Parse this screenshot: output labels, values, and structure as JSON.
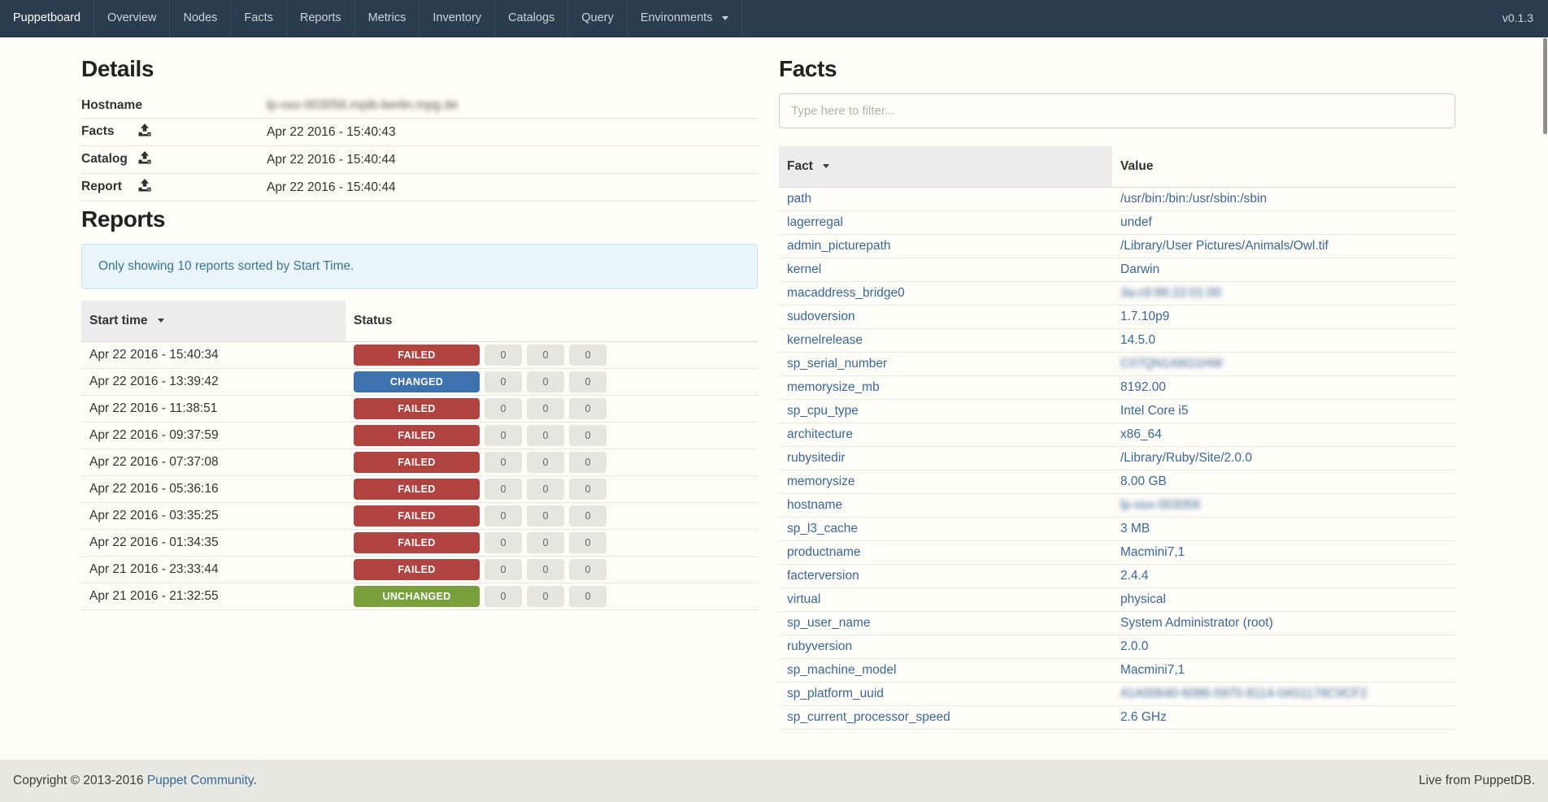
{
  "navbar": {
    "brand": "Puppetboard",
    "items": [
      "Overview",
      "Nodes",
      "Facts",
      "Reports",
      "Metrics",
      "Inventory",
      "Catalogs",
      "Query"
    ],
    "environments_label": "Environments",
    "version": "v0.1.3"
  },
  "details": {
    "title": "Details",
    "rows": [
      {
        "label": "Hostname",
        "has_icon": false,
        "value": "lp-osx-003056.mpib-berlin.mpg.de",
        "blurred": true
      },
      {
        "label": "Facts",
        "has_icon": true,
        "value": "Apr 22 2016 - 15:40:43",
        "blurred": false
      },
      {
        "label": "Catalog",
        "has_icon": true,
        "value": "Apr 22 2016 - 15:40:44",
        "blurred": false
      },
      {
        "label": "Report",
        "has_icon": true,
        "value": "Apr 22 2016 - 15:40:44",
        "blurred": false
      }
    ]
  },
  "reports": {
    "title": "Reports",
    "alert_text": "Only showing 10 reports sorted by Start Time.",
    "col_start_time": "Start time",
    "col_status": "Status",
    "status_colors": {
      "FAILED": "#b04240",
      "CHANGED": "#3d72af",
      "UNCHANGED": "#7aa03c"
    },
    "rows": [
      {
        "time": "Apr 22 2016 - 15:40:34",
        "status": "FAILED",
        "counts": [
          "0",
          "0",
          "0"
        ]
      },
      {
        "time": "Apr 22 2016 - 13:39:42",
        "status": "CHANGED",
        "counts": [
          "0",
          "0",
          "0"
        ]
      },
      {
        "time": "Apr 22 2016 - 11:38:51",
        "status": "FAILED",
        "counts": [
          "0",
          "0",
          "0"
        ]
      },
      {
        "time": "Apr 22 2016 - 09:37:59",
        "status": "FAILED",
        "counts": [
          "0",
          "0",
          "0"
        ]
      },
      {
        "time": "Apr 22 2016 - 07:37:08",
        "status": "FAILED",
        "counts": [
          "0",
          "0",
          "0"
        ]
      },
      {
        "time": "Apr 22 2016 - 05:36:16",
        "status": "FAILED",
        "counts": [
          "0",
          "0",
          "0"
        ]
      },
      {
        "time": "Apr 22 2016 - 03:35:25",
        "status": "FAILED",
        "counts": [
          "0",
          "0",
          "0"
        ]
      },
      {
        "time": "Apr 22 2016 - 01:34:35",
        "status": "FAILED",
        "counts": [
          "0",
          "0",
          "0"
        ]
      },
      {
        "time": "Apr 21 2016 - 23:33:44",
        "status": "FAILED",
        "counts": [
          "0",
          "0",
          "0"
        ]
      },
      {
        "time": "Apr 21 2016 - 21:32:55",
        "status": "UNCHANGED",
        "counts": [
          "0",
          "0",
          "0"
        ]
      }
    ]
  },
  "facts": {
    "title": "Facts",
    "filter_placeholder": "Type here to filter...",
    "col_fact": "Fact",
    "col_value": "Value",
    "rows": [
      {
        "name": "path",
        "value": "/usr/bin:/bin:/usr/sbin:/sbin",
        "blurred": false
      },
      {
        "name": "lagerregal",
        "value": "undef",
        "blurred": false
      },
      {
        "name": "admin_picturepath",
        "value": "/Library/User Pictures/Animals/Owl.tif",
        "blurred": false
      },
      {
        "name": "kernel",
        "value": "Darwin",
        "blurred": false
      },
      {
        "name": "macaddress_bridge0",
        "value": "3a:c9:86:22:01:00",
        "blurred": true
      },
      {
        "name": "sudoversion",
        "value": "1.7.10p9",
        "blurred": false
      },
      {
        "name": "kernelrelease",
        "value": "14.5.0",
        "blurred": false
      },
      {
        "name": "sp_serial_number",
        "value": "C07QN1A6G1HW",
        "blurred": true
      },
      {
        "name": "memorysize_mb",
        "value": "8192.00",
        "blurred": false
      },
      {
        "name": "sp_cpu_type",
        "value": "Intel Core i5",
        "blurred": false
      },
      {
        "name": "architecture",
        "value": "x86_64",
        "blurred": false
      },
      {
        "name": "rubysitedir",
        "value": "/Library/Ruby/Site/2.0.0",
        "blurred": false
      },
      {
        "name": "memorysize",
        "value": "8.00 GB",
        "blurred": false
      },
      {
        "name": "hostname",
        "value": "lp-osx-003056",
        "blurred": true
      },
      {
        "name": "sp_l3_cache",
        "value": "3 MB",
        "blurred": false
      },
      {
        "name": "productname",
        "value": "Macmini7,1",
        "blurred": false
      },
      {
        "name": "facterversion",
        "value": "2.4.4",
        "blurred": false
      },
      {
        "name": "virtual",
        "value": "physical",
        "blurred": false
      },
      {
        "name": "sp_user_name",
        "value": "System Administrator (root)",
        "blurred": false
      },
      {
        "name": "rubyversion",
        "value": "2.0.0",
        "blurred": false
      },
      {
        "name": "sp_machine_model",
        "value": "Macmini7,1",
        "blurred": false
      },
      {
        "name": "sp_platform_uuid",
        "value": "41A00640-6086-5970-8114-0A51178C9CF2",
        "blurred": true
      },
      {
        "name": "sp_current_processor_speed",
        "value": "2.6 GHz",
        "blurred": false
      }
    ]
  },
  "footer": {
    "copyright_prefix": "Copyright © 2013-2016",
    "link_text": "Puppet Community",
    "suffix": ".",
    "right_text": "Live from PuppetDB."
  }
}
